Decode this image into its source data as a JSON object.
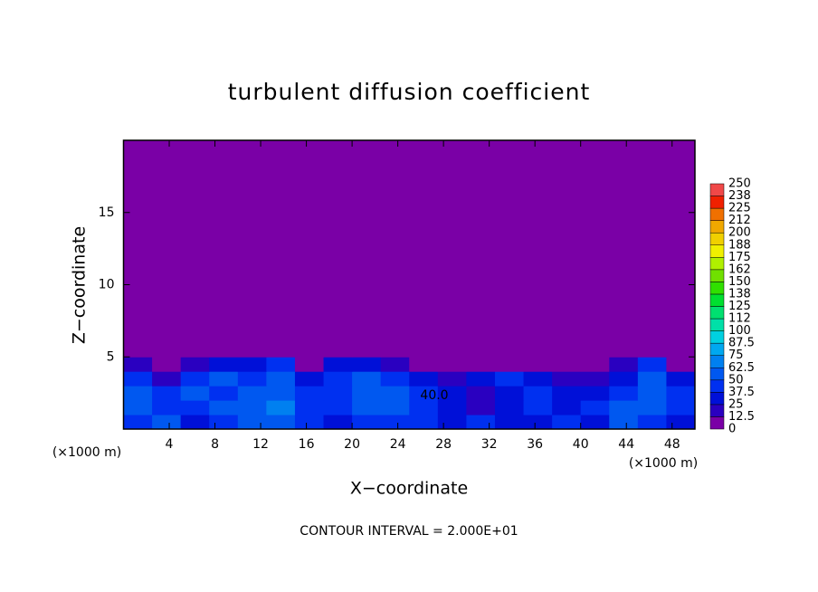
{
  "chart_data": {
    "type": "heatmap",
    "title": "turbulent diffusion coefficient",
    "xlabel": "X−coordinate",
    "ylabel": "Z−coordinate",
    "y_unit": "(×1000 m)",
    "x_unit": "(×1000 m)",
    "footer": "CONTOUR INTERVAL = 2.000E+01",
    "annotation": "40.0",
    "xlim": [
      0,
      50
    ],
    "ylim": [
      0,
      20
    ],
    "xticks": [
      4,
      8,
      12,
      16,
      20,
      24,
      28,
      32,
      36,
      40,
      44,
      48
    ],
    "yticks": [
      5,
      10,
      15
    ],
    "x": [
      1.25,
      3.75,
      6.25,
      8.75,
      11.25,
      13.75,
      16.25,
      18.75,
      21.25,
      23.75,
      26.25,
      28.75,
      31.25,
      33.75,
      36.25,
      38.75,
      41.25,
      43.75,
      46.25,
      48.75
    ],
    "y": [
      0.5,
      1.5,
      2.5,
      3.5,
      4.5,
      5.5
    ],
    "z": [
      [
        40,
        50,
        30,
        40,
        50,
        60,
        40,
        30,
        40,
        45,
        40,
        30,
        40,
        35,
        30,
        40,
        30,
        50,
        40,
        30
      ],
      [
        50,
        40,
        45,
        50,
        55,
        70,
        45,
        40,
        50,
        50,
        40,
        30,
        20,
        35,
        40,
        30,
        40,
        50,
        60,
        40
      ],
      [
        60,
        45,
        50,
        45,
        50,
        60,
        40,
        45,
        50,
        50,
        40,
        30,
        20,
        30,
        40,
        30,
        30,
        40,
        60,
        40
      ],
      [
        40,
        20,
        40,
        50,
        45,
        60,
        30,
        40,
        50,
        40,
        30,
        20,
        30,
        40,
        30,
        20,
        20,
        30,
        50,
        30
      ],
      [
        20,
        0,
        20,
        30,
        30,
        40,
        10,
        30,
        30,
        20,
        10,
        10,
        10,
        10,
        10,
        10,
        10,
        20,
        40,
        10
      ],
      [
        10,
        0,
        0,
        0,
        0,
        10,
        0,
        0,
        10,
        0,
        0,
        0,
        0,
        0,
        0,
        0,
        0,
        0,
        10,
        0
      ]
    ],
    "colorbar": {
      "levels": [
        0,
        12.5,
        25,
        37.5,
        50,
        62.5,
        75,
        87.5,
        100,
        112,
        125,
        138,
        150,
        162,
        175,
        188,
        200,
        212,
        225,
        238,
        250
      ],
      "colors": [
        "#7a00a6",
        "#2a00c0",
        "#0010d8",
        "#0030f0",
        "#0058f0",
        "#0080f0",
        "#00a8f0",
        "#00d0e0",
        "#00e0a8",
        "#00e070",
        "#00e030",
        "#30e000",
        "#70e000",
        "#b0f000",
        "#f0f000",
        "#f0d000",
        "#f0a800",
        "#f07000",
        "#f02000",
        "#f04848",
        "#f08888"
      ]
    }
  }
}
